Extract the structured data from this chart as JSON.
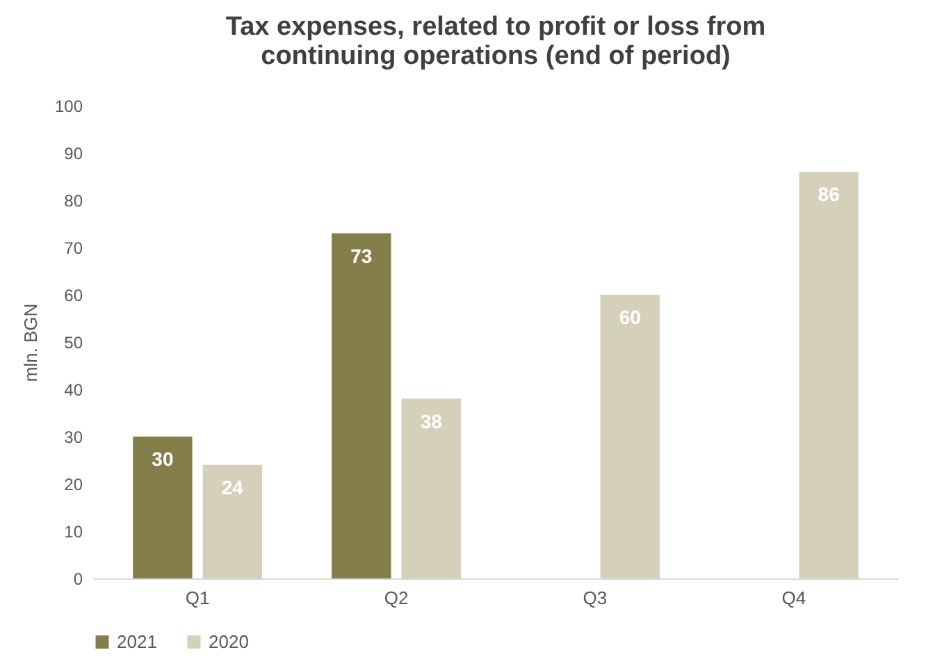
{
  "chart_data": {
    "type": "bar",
    "title": "Tax expenses, related to profit or loss from continuing operations (end of period)",
    "ylabel": "mln. BGN",
    "categories": [
      "Q1",
      "Q2",
      "Q3",
      "Q4"
    ],
    "series": [
      {
        "name": "2021",
        "color": "#847e4a",
        "values": [
          30,
          73,
          null,
          null
        ]
      },
      {
        "name": "2020",
        "color": "#d5d0ba",
        "values": [
          24,
          38,
          60,
          86
        ]
      }
    ],
    "ylim": [
      0,
      100
    ],
    "yticks": [
      0,
      10,
      20,
      30,
      40,
      50,
      60,
      70,
      80,
      90,
      100
    ],
    "grid": false,
    "legend": "bottom",
    "data_labels": true
  }
}
